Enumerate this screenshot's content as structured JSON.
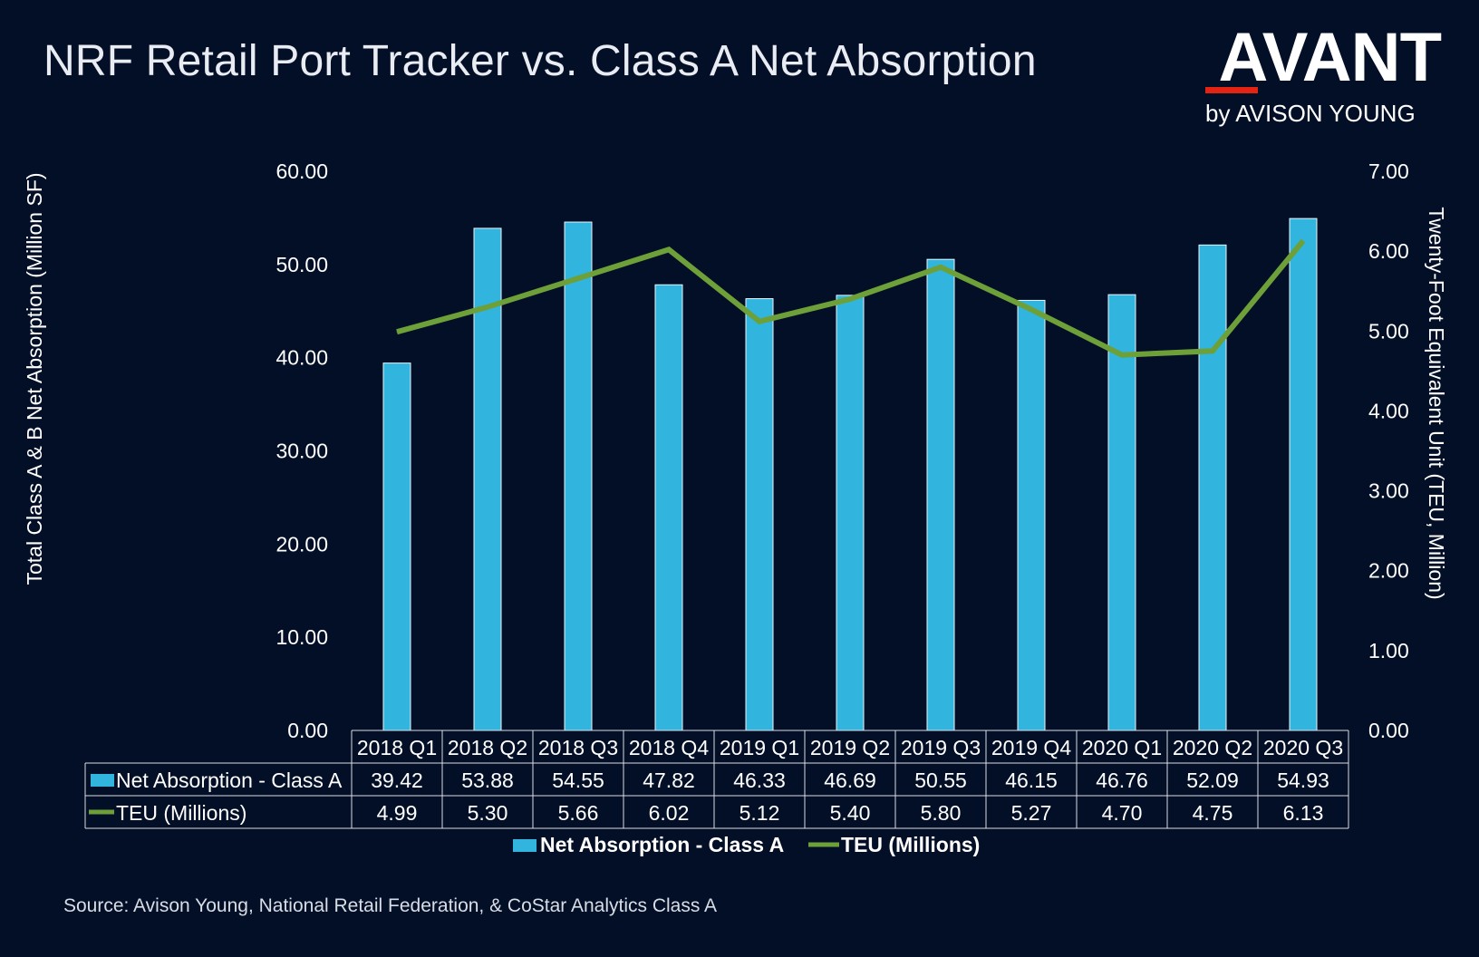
{
  "title": "NRF Retail Port Tracker vs. Class A Net Absorption",
  "logo": {
    "word": "AVANT",
    "sub": "by AVISON YOUNG",
    "accent": "#e42313"
  },
  "source": "Source: Avison Young, National Retail Federation, & CoStar Analytics Class A",
  "chart_data": {
    "type": "bar",
    "combo": "bar + line (secondary axis)",
    "categories": [
      "2018 Q1",
      "2018 Q2",
      "2018 Q3",
      "2018 Q4",
      "2019 Q1",
      "2019 Q2",
      "2019 Q3",
      "2019 Q4",
      "2020 Q1",
      "2020 Q2",
      "2020 Q3"
    ],
    "series": [
      {
        "name": "Net Absorption - Class A",
        "type": "bar",
        "axis": "left",
        "color": "#31b4dd",
        "values": [
          39.42,
          53.88,
          54.55,
          47.82,
          46.33,
          46.69,
          50.55,
          46.15,
          46.76,
          52.09,
          54.93
        ],
        "labels": [
          "39.42",
          "53.88",
          "54.55",
          "47.82",
          "46.33",
          "46.69",
          "50.55",
          "46.15",
          "46.76",
          "52.09",
          "54.93"
        ]
      },
      {
        "name": "TEU (Millions)",
        "type": "line",
        "axis": "right",
        "color": "#6ea03a",
        "values": [
          4.99,
          5.3,
          5.66,
          6.02,
          5.12,
          5.4,
          5.8,
          5.27,
          4.7,
          4.75,
          6.13
        ],
        "labels": [
          "4.99",
          "5.30",
          "5.66",
          "6.02",
          "5.12",
          "5.40",
          "5.80",
          "5.27",
          "4.70",
          "4.75",
          "6.13"
        ]
      }
    ],
    "ylabel": "Total Class A & B Net Absorption (Million SF)",
    "y2label": "Twenty-Foot Equivalent Unit (TEU, Million)",
    "ylim": [
      0,
      60
    ],
    "y2lim": [
      0,
      7
    ],
    "yticks": [
      "0.00",
      "10.00",
      "20.00",
      "30.00",
      "40.00",
      "50.00",
      "60.00"
    ],
    "y2ticks": [
      "0.00",
      "1.00",
      "2.00",
      "3.00",
      "4.00",
      "5.00",
      "6.00",
      "7.00"
    ],
    "grid": false,
    "legend": "bottom",
    "data_table": true
  }
}
